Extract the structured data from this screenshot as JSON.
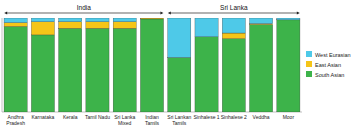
{
  "chart_data": {
    "type": "bar",
    "stacked": true,
    "categories": [
      "Andhra\nPradesh",
      "Karnataka",
      "Kerala",
      "Tamil Nadu",
      "Sri Lanka\nMixed",
      "Indian\nTamils",
      "Sri Lankan\nTamils",
      "Sinhalese 1",
      "Sinhalese 2",
      "Veddha",
      "Moor"
    ],
    "series": [
      {
        "name": "South Asian",
        "color": "#3db34a",
        "values": [
          0.91,
          0.82,
          0.89,
          0.89,
          0.89,
          0.99,
          0.58,
          0.8,
          0.78,
          0.93,
          0.98
        ]
      },
      {
        "name": "East Asian",
        "color": "#f5c518",
        "values": [
          0.04,
          0.14,
          0.07,
          0.07,
          0.07,
          0.01,
          0.0,
          0.0,
          0.06,
          0.01,
          0.0
        ]
      },
      {
        "name": "West Eurasian",
        "color": "#4ec9e8",
        "values": [
          0.05,
          0.04,
          0.04,
          0.04,
          0.04,
          0.0,
          0.42,
          0.2,
          0.16,
          0.06,
          0.02
        ]
      }
    ],
    "ylim": [
      0,
      1.0
    ],
    "yticks": [],
    "tick_labels": "x",
    "grid": false,
    "legend": "right",
    "annotations": [
      {
        "text": "India",
        "from": "Andhra\nPradesh",
        "to": "Indian\nTamils"
      },
      {
        "text": "Sri Lanka",
        "from": "Sri Lankan\nTamils",
        "to": "Moor"
      }
    ]
  }
}
